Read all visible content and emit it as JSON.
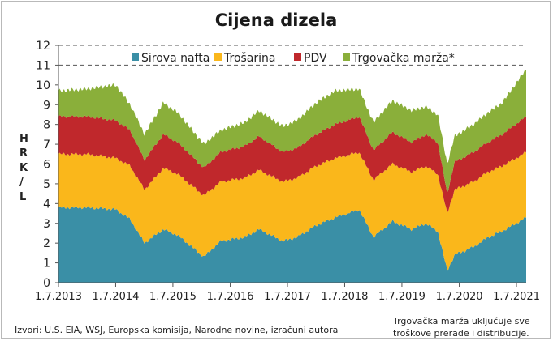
{
  "chart_data": {
    "type": "area",
    "title": "Cijena dizela",
    "ylabel_letters": [
      "H",
      "R",
      "K",
      "/",
      "L"
    ],
    "ylim": [
      0,
      12
    ],
    "yticks": [
      "0",
      "1",
      "2",
      "3",
      "4",
      "5",
      "6",
      "7",
      "8",
      "9",
      "10",
      "11",
      "12"
    ],
    "grid": "horizontal dashed at 11 and 12",
    "legend_position": "top",
    "x_tick_labels": [
      "1.7.2013",
      "1.7.2014",
      "1.7.2015",
      "1.7.2016",
      "1.7.2017",
      "1.7.2018",
      "1.7.2019",
      "1.7.2020",
      "1.7.2021"
    ],
    "x_range": [
      "2013-07-01",
      "2021-09-01"
    ],
    "x_anchor_dates": [
      "2013-07-01",
      "2014-01-01",
      "2014-07-01",
      "2014-10-01",
      "2015-01-01",
      "2015-05-01",
      "2015-08-01",
      "2016-01-15",
      "2016-05-01",
      "2016-10-01",
      "2017-01-01",
      "2017-06-01",
      "2017-09-01",
      "2018-01-01",
      "2018-05-01",
      "2018-10-01",
      "2019-01-01",
      "2019-05-01",
      "2019-09-01",
      "2019-12-01",
      "2020-02-15",
      "2020-04-15",
      "2020-06-01",
      "2020-10-01",
      "2021-01-01",
      "2021-04-01",
      "2021-09-01"
    ],
    "series": [
      {
        "name": "Sirova nafta",
        "color": "#3a8fa6",
        "values": [
          3.8,
          3.8,
          3.7,
          3.2,
          2.0,
          2.7,
          2.4,
          1.3,
          2.1,
          2.3,
          2.7,
          2.1,
          2.3,
          2.9,
          3.3,
          3.7,
          2.3,
          3.1,
          2.7,
          3.0,
          2.6,
          0.6,
          1.4,
          1.8,
          2.3,
          2.6,
          3.3
        ]
      },
      {
        "name": "Trošarina",
        "color": "#fab71b",
        "values": [
          2.7,
          2.7,
          2.6,
          2.7,
          2.7,
          3.1,
          3.1,
          3.1,
          3.0,
          3.0,
          3.0,
          3.0,
          3.0,
          3.0,
          3.0,
          2.9,
          2.9,
          2.9,
          2.9,
          2.9,
          2.9,
          2.9,
          3.3,
          3.3,
          3.3,
          3.3,
          3.3
        ]
      },
      {
        "name": "PDV",
        "color": "#c0282c",
        "values": [
          1.9,
          1.9,
          1.9,
          1.8,
          1.5,
          1.7,
          1.6,
          1.4,
          1.5,
          1.6,
          1.7,
          1.5,
          1.5,
          1.6,
          1.7,
          1.8,
          1.5,
          1.6,
          1.5,
          1.6,
          1.6,
          1.0,
          1.4,
          1.5,
          1.5,
          1.6,
          1.8
        ]
      },
      {
        "name": "Trgovačka marža*",
        "color": "#8aaf3a",
        "values": [
          1.3,
          1.4,
          1.8,
          1.3,
          1.3,
          1.6,
          1.5,
          1.2,
          1.1,
          1.2,
          1.3,
          1.3,
          1.4,
          1.6,
          1.7,
          1.4,
          1.4,
          1.6,
          1.6,
          1.4,
          1.4,
          1.5,
          1.3,
          1.4,
          1.5,
          1.6,
          2.4
        ]
      }
    ],
    "source": "Izvori: U.S. EIA, WSJ, Europska komisija, Narodne novine, izračuni autora",
    "footnote_lines": [
      "Trgovačka marža uključuje sve",
      "troškove prerade i distribucije."
    ]
  }
}
